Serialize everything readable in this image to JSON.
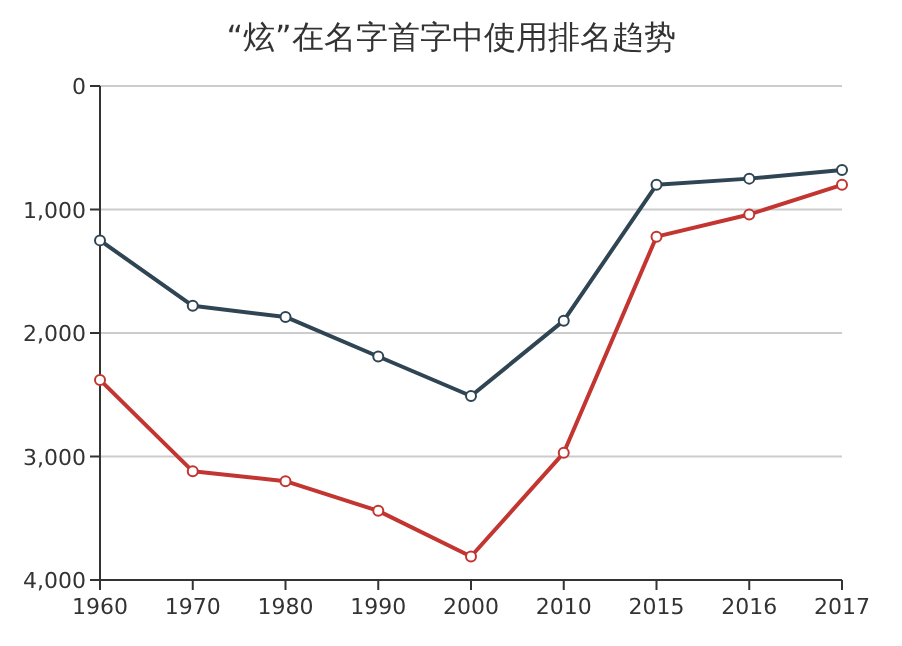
{
  "chart_data": {
    "type": "line",
    "title": "“炫”在名字首字中使用排名趋势",
    "categories": [
      "1960",
      "1970",
      "1980",
      "1990",
      "2000",
      "2010",
      "2015",
      "2016",
      "2017"
    ],
    "series": [
      {
        "color": "#2f4554",
        "values": [
          1250,
          1780,
          1870,
          2190,
          2510,
          1900,
          800,
          750,
          680
        ]
      },
      {
        "color": "#c23531",
        "values": [
          2380,
          3120,
          3200,
          3440,
          3810,
          2970,
          1220,
          1040,
          800
        ]
      }
    ],
    "ylim": [
      4000,
      0
    ],
    "yticks": [
      {
        "value": 0,
        "label": "0"
      },
      {
        "value": 1000,
        "label": "1,000"
      },
      {
        "value": 2000,
        "label": "2,000"
      },
      {
        "value": 3000,
        "label": "3,000"
      },
      {
        "value": 4000,
        "label": "4,000"
      }
    ],
    "grid": "y",
    "marker": "circle",
    "line_style": "solid"
  }
}
